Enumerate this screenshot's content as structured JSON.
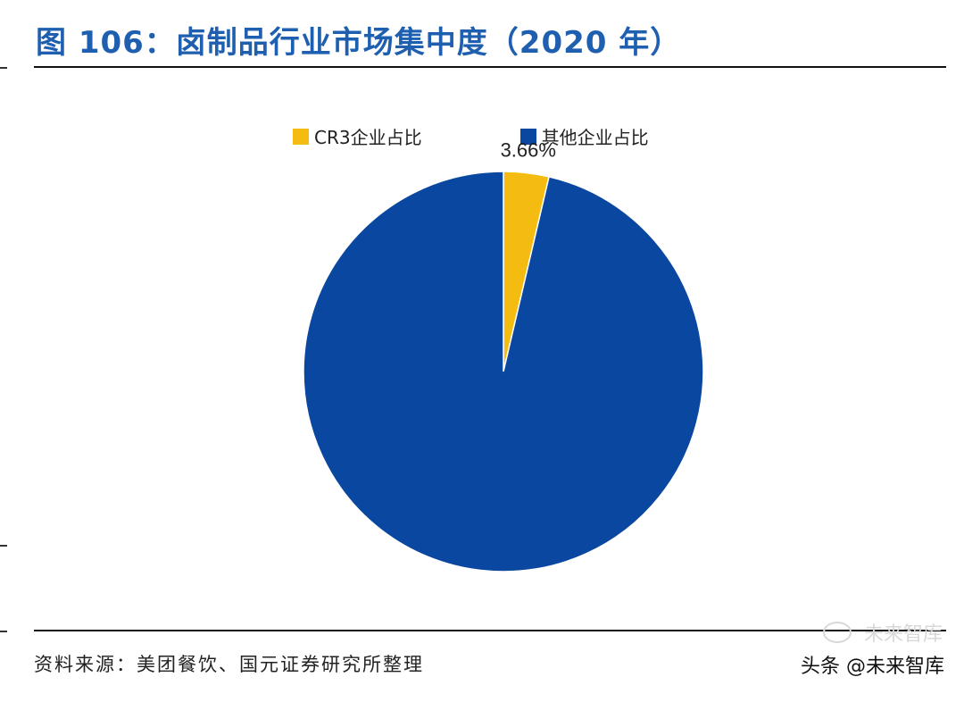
{
  "header": {
    "title": "图 106：卤制品行业市场集中度（2020 年）"
  },
  "chart_data": {
    "type": "pie",
    "labels": [
      "CR3企业占比",
      "其他企业占比"
    ],
    "values": [
      3.66,
      96.34
    ],
    "colors": [
      "#f4bb10",
      "#0a47a0"
    ],
    "data_labels": [
      "3.66%",
      ""
    ],
    "legend_position": "top",
    "title": ""
  },
  "footer": {
    "source": "资料来源：美团餐饮、国元证券研究所整理",
    "watermark": "头条 @未来智库",
    "watermark_faint": "未来智库",
    "wechat_icon": "wechat-icon"
  }
}
